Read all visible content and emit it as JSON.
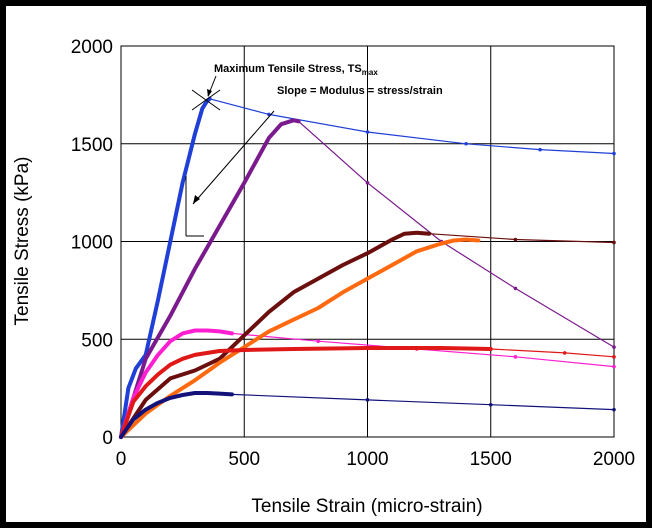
{
  "chart_data": {
    "type": "line",
    "xlabel": "Tensile Strain (micro-strain)",
    "ylabel": "Tensile Stress (kPa)",
    "xlim": [
      0,
      2000
    ],
    "ylim": [
      0,
      2000
    ],
    "xticks": [
      "0",
      "500",
      "1000",
      "1500",
      "2000"
    ],
    "yticks": [
      "0",
      "500",
      "1000",
      "1500",
      "2000"
    ],
    "grid": true,
    "legend": "none",
    "annotations": {
      "peak_label_main": "Maximum Tensile Stress, TS",
      "peak_label_sub": "max",
      "slope_label": "Slope = Modulus = stress/strain"
    },
    "series": [
      {
        "color": "#1f3fd6",
        "x": [
          0,
          30,
          60,
          100,
          150,
          200,
          250,
          300,
          330,
          350,
          360
        ],
        "y": [
          0,
          250,
          350,
          420,
          700,
          1000,
          1300,
          1550,
          1680,
          1720,
          1730
        ]
      },
      {
        "color": "#1f3fd6",
        "x": [
          360,
          600,
          1000,
          1400,
          1700,
          2000
        ],
        "y": [
          1730,
          1650,
          1560,
          1500,
          1470,
          1450
        ]
      },
      {
        "color": "#7a1a8c",
        "x": [
          0,
          100,
          200,
          300,
          400,
          500,
          600,
          650,
          700,
          720
        ],
        "y": [
          0,
          400,
          620,
          860,
          1080,
          1300,
          1530,
          1600,
          1620,
          1615
        ]
      },
      {
        "color": "#7a1a8c",
        "x": [
          720,
          1000,
          1300,
          1600,
          2000
        ],
        "y": [
          1615,
          1300,
          1000,
          760,
          460
        ]
      },
      {
        "color": "#ff1fd0",
        "x": [
          0,
          50,
          100,
          150,
          200,
          250,
          300,
          350,
          400,
          450
        ],
        "y": [
          0,
          200,
          330,
          420,
          490,
          530,
          545,
          545,
          540,
          530
        ]
      },
      {
        "color": "#ff1fd0",
        "x": [
          450,
          800,
          1200,
          1600,
          2000
        ],
        "y": [
          530,
          490,
          450,
          410,
          360
        ]
      },
      {
        "color": "#6b0e0e",
        "x": [
          0,
          100,
          200,
          300,
          400,
          500,
          600,
          700,
          800,
          900,
          1000,
          1100,
          1150,
          1200,
          1250
        ],
        "y": [
          0,
          190,
          300,
          340,
          400,
          520,
          640,
          740,
          810,
          880,
          940,
          1010,
          1040,
          1045,
          1040
        ]
      },
      {
        "color": "#6b0e0e",
        "x": [
          1250,
          1600,
          2000
        ],
        "y": [
          1040,
          1010,
          995
        ]
      },
      {
        "color": "#ff6a10",
        "x": [
          0,
          100,
          200,
          300,
          400,
          500,
          600,
          700,
          800,
          900,
          1000,
          1100,
          1200,
          1300,
          1350,
          1400,
          1450
        ],
        "y": [
          0,
          120,
          210,
          290,
          380,
          460,
          540,
          600,
          660,
          740,
          810,
          880,
          950,
          990,
          1005,
          1010,
          1005
        ]
      },
      {
        "color": "#e01818",
        "x": [
          0,
          50,
          100,
          150,
          200,
          250,
          300,
          400,
          500,
          700,
          1000,
          1300,
          1500
        ],
        "y": [
          0,
          180,
          260,
          320,
          370,
          400,
          420,
          440,
          445,
          450,
          455,
          455,
          450
        ]
      },
      {
        "color": "#e01818",
        "x": [
          1500,
          1800,
          2000
        ],
        "y": [
          450,
          430,
          410
        ]
      },
      {
        "color": "#12127a",
        "x": [
          0,
          50,
          100,
          150,
          200,
          250,
          300,
          350,
          400,
          450
        ],
        "y": [
          0,
          90,
          140,
          175,
          200,
          215,
          225,
          225,
          222,
          218
        ]
      },
      {
        "color": "#12127a",
        "x": [
          450,
          1000,
          1500,
          2000
        ],
        "y": [
          218,
          190,
          165,
          140
        ]
      }
    ]
  }
}
